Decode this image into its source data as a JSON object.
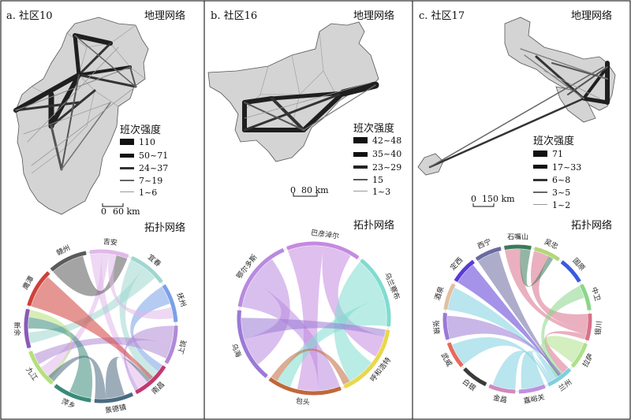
{
  "panels": [
    {
      "title": "a. 社区10",
      "geo_label": "地理网络",
      "topo_label": "拓扑网络",
      "legend_title": "班次强度",
      "legend": [
        "110",
        "50~71",
        "24~37",
        "7~19",
        "1~6"
      ],
      "scale": "60 km",
      "scale_zero": "0",
      "chord_labels": [
        "吉安",
        "宜春",
        "抚州",
        "上饶",
        "南昌",
        "景德镇",
        "萍乡",
        "九江",
        "新余",
        "鹰潭",
        "赣州"
      ]
    },
    {
      "title": "b. 社区16",
      "geo_label": "地理网络",
      "topo_label": "拓扑网络",
      "legend_title": "班次强度",
      "legend": [
        "42~48",
        "35~40",
        "23~29",
        "15",
        "1~3"
      ],
      "scale": "80 km",
      "scale_zero": "0",
      "chord_labels": [
        "鄂尔多斯",
        "巴彦淖尔",
        "乌兰察布",
        "呼和浩特",
        "包头",
        "乌海"
      ]
    },
    {
      "title": "c. 社区17",
      "geo_label": "地理网络",
      "topo_label": "拓扑网络",
      "legend_title": "班次强度",
      "legend": [
        "71",
        "17~33",
        "6~8",
        "3~5",
        "1~2"
      ],
      "scale": "150 km",
      "scale_zero": "0",
      "chord_labels": [
        "石嘴山",
        "吴忠",
        "固原",
        "中卫",
        "银川",
        "拉萨",
        "兰州",
        "嘉峪关",
        "金昌",
        "白银",
        "武威",
        "张掖",
        "酒泉",
        "定西",
        "西宁"
      ]
    }
  ],
  "colors": {
    "map_fill": "#d4d4d4",
    "map_stroke": "#555555",
    "edge_dark": "#1f1f1f"
  }
}
